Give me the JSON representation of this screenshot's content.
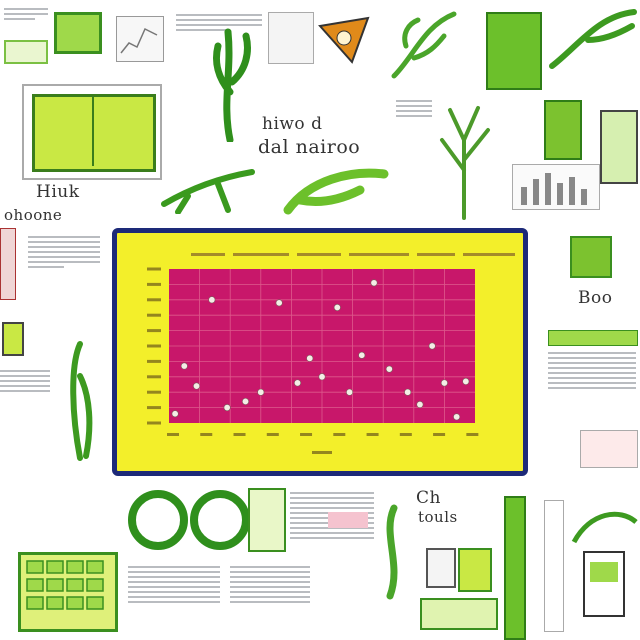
{
  "background_color": "#ffffff",
  "decor_text": [
    {
      "id": "header-scribble",
      "text": "hiwo d"
    },
    {
      "id": "center-scribble",
      "text": "dal nairoo"
    },
    {
      "id": "left-scribble-1",
      "text": "Hiuk"
    },
    {
      "id": "left-scribble-2",
      "text": "ohoone"
    },
    {
      "id": "right-scribble",
      "text": "Boo"
    },
    {
      "id": "bottom-scribble-1",
      "text": "Ch"
    },
    {
      "id": "bottom-scribble-2",
      "text": "touls"
    }
  ],
  "chart_data": {
    "type": "scatter",
    "colors": {
      "frame": "#1d2a78",
      "panel": "#f3ef2a",
      "plot": "#c8176a",
      "grid": "#de5a8c",
      "points": "#f4ede6"
    },
    "xlim": [
      0,
      10
    ],
    "ylim": [
      0,
      10
    ],
    "grid": true,
    "points": [
      {
        "x": 0.2,
        "y": 0.6
      },
      {
        "x": 0.5,
        "y": 3.7
      },
      {
        "x": 0.9,
        "y": 2.4
      },
      {
        "x": 1.4,
        "y": 8.0
      },
      {
        "x": 1.9,
        "y": 1.0
      },
      {
        "x": 2.5,
        "y": 1.4
      },
      {
        "x": 3.0,
        "y": 2.0
      },
      {
        "x": 3.6,
        "y": 7.8
      },
      {
        "x": 4.2,
        "y": 2.6
      },
      {
        "x": 4.6,
        "y": 4.2
      },
      {
        "x": 5.0,
        "y": 3.0
      },
      {
        "x": 5.5,
        "y": 7.5
      },
      {
        "x": 5.9,
        "y": 2.0
      },
      {
        "x": 6.3,
        "y": 4.4
      },
      {
        "x": 6.7,
        "y": 9.1
      },
      {
        "x": 7.2,
        "y": 3.5
      },
      {
        "x": 7.8,
        "y": 2.0
      },
      {
        "x": 8.2,
        "y": 1.2
      },
      {
        "x": 8.6,
        "y": 5.0
      },
      {
        "x": 9.0,
        "y": 2.6
      },
      {
        "x": 9.4,
        "y": 0.4
      },
      {
        "x": 9.7,
        "y": 2.7
      }
    ]
  }
}
